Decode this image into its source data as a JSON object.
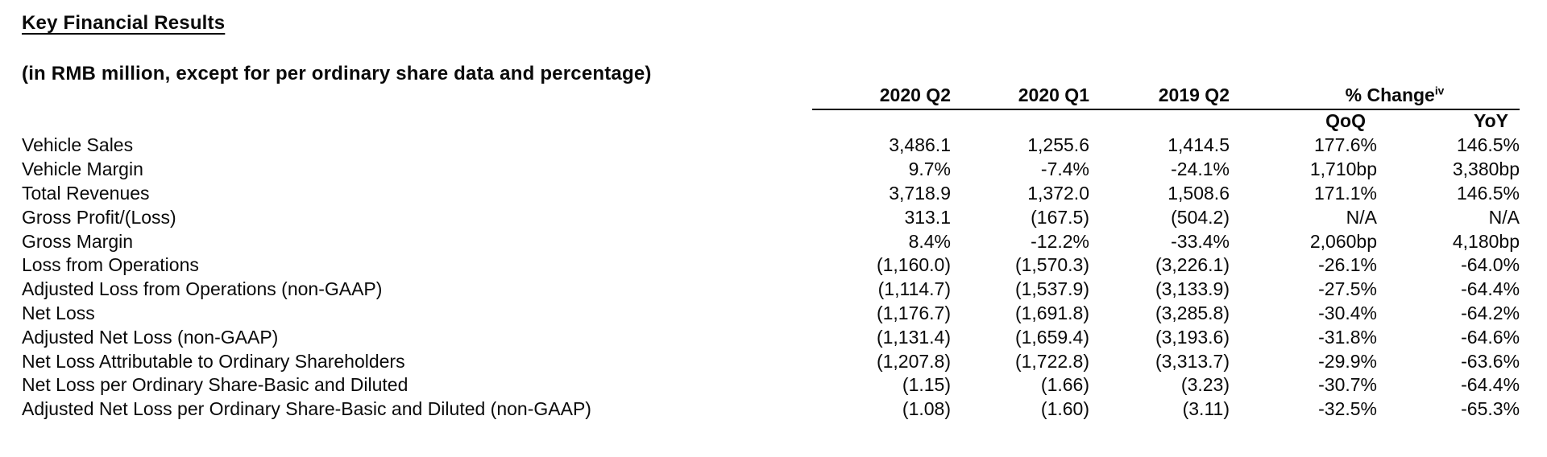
{
  "page": {
    "title": "Key Financial Results",
    "caption": "(in RMB million, except for per ordinary share data and percentage)"
  },
  "table": {
    "column_headers": [
      "2020 Q2",
      "2020 Q1",
      "2019 Q2"
    ],
    "pct_change_header": {
      "label": "% Change",
      "superscript": "iv"
    },
    "sub_headers": {
      "qoq": "QoQ",
      "yoy": "YoY"
    },
    "rows": [
      {
        "label": "Vehicle Sales",
        "values": [
          "3,486.1",
          "1,255.6",
          "1,414.5",
          "177.6%",
          "146.5%"
        ]
      },
      {
        "label": "Vehicle Margin",
        "values": [
          "9.7%",
          "-7.4%",
          "-24.1%",
          "1,710bp",
          "3,380bp"
        ]
      },
      {
        "label": "Total Revenues",
        "values": [
          "3,718.9",
          "1,372.0",
          "1,508.6",
          "171.1%",
          "146.5%"
        ]
      },
      {
        "label": "Gross Profit/(Loss)",
        "values": [
          "313.1",
          "(167.5)",
          "(504.2)",
          "N/A",
          "N/A"
        ]
      },
      {
        "label": "Gross Margin",
        "values": [
          "8.4%",
          "-12.2%",
          "-33.4%",
          "2,060bp",
          "4,180bp"
        ]
      },
      {
        "label": "Loss from Operations",
        "values": [
          "(1,160.0)",
          "(1,570.3)",
          "(3,226.1)",
          "-26.1%",
          "-64.0%"
        ]
      },
      {
        "label": "Adjusted Loss from Operations (non-GAAP)",
        "values": [
          "(1,114.7)",
          "(1,537.9)",
          "(3,133.9)",
          "-27.5%",
          "-64.4%"
        ]
      },
      {
        "label": "Net Loss",
        "values": [
          "(1,176.7)",
          "(1,691.8)",
          "(3,285.8)",
          "-30.4%",
          "-64.2%"
        ]
      },
      {
        "label": "Adjusted Net Loss (non-GAAP)",
        "values": [
          "(1,131.4)",
          "(1,659.4)",
          "(3,193.6)",
          "-31.8%",
          "-64.6%"
        ]
      },
      {
        "label": "Net Loss Attributable to Ordinary Shareholders",
        "values": [
          "(1,207.8)",
          "(1,722.8)",
          "(3,313.7)",
          "-29.9%",
          "-63.6%"
        ]
      },
      {
        "label": "Net Loss per Ordinary Share-Basic and Diluted",
        "values": [
          "(1.15)",
          "(1.66)",
          "(3.23)",
          "-30.7%",
          "-64.4%"
        ]
      },
      {
        "label": "Adjusted Net Loss per Ordinary Share-Basic and Diluted (non-GAAP)",
        "values": [
          "(1.08)",
          "(1.60)",
          "(3.11)",
          "-32.5%",
          "-65.3%"
        ]
      }
    ]
  },
  "colors": {
    "text": "#0a0a0a",
    "rule": "#0a0a0a",
    "background": "#ffffff"
  }
}
